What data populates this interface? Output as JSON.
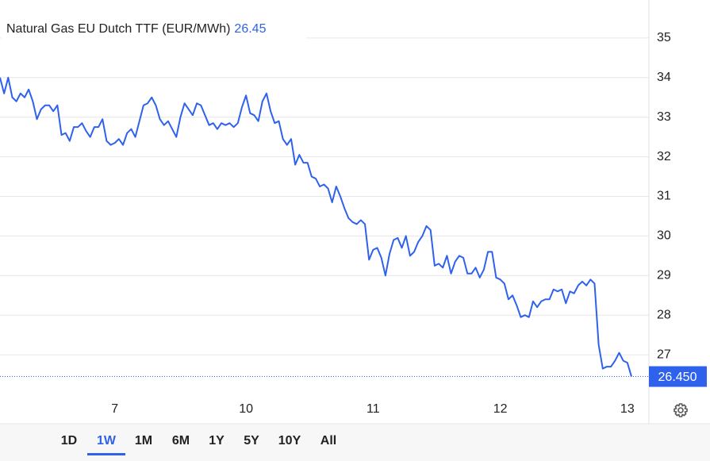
{
  "chart_data": {
    "type": "line",
    "title": "Natural Gas EU Dutch TTF (EUR/MWh)",
    "header_value": {
      "value": 26.45,
      "label": "26.45"
    },
    "price_badge": {
      "value": 26.45,
      "label": "26.450"
    },
    "color": "#2f62ec",
    "grid": true,
    "ylim": [
      25.94,
      35.96
    ],
    "yticks": [
      27,
      28,
      29,
      30,
      31,
      32,
      33,
      34,
      35
    ],
    "categories": [
      null,
      null,
      null,
      null,
      null,
      null,
      null,
      null,
      null,
      null,
      null,
      null,
      null,
      null,
      null,
      null,
      null,
      null,
      null,
      null,
      null,
      null,
      null,
      null,
      null,
      null,
      null,
      null,
      "7",
      null,
      null,
      null,
      null,
      null,
      null,
      null,
      null,
      null,
      null,
      null,
      null,
      null,
      null,
      null,
      null,
      null,
      null,
      null,
      null,
      null,
      null,
      null,
      null,
      null,
      null,
      null,
      null,
      null,
      null,
      null,
      "10",
      null,
      null,
      null,
      null,
      null,
      null,
      null,
      null,
      null,
      null,
      null,
      null,
      null,
      null,
      null,
      null,
      null,
      null,
      null,
      null,
      null,
      null,
      null,
      null,
      null,
      null,
      null,
      null,
      null,
      null,
      "11",
      null,
      null,
      null,
      null,
      null,
      null,
      null,
      null,
      null,
      null,
      null,
      null,
      null,
      null,
      null,
      null,
      null,
      null,
      null,
      null,
      null,
      null,
      null,
      null,
      null,
      null,
      null,
      null,
      null,
      null,
      "12",
      null,
      null,
      null,
      null,
      null,
      null,
      null,
      null,
      null,
      null,
      null,
      null,
      null,
      null,
      null,
      null,
      null,
      null,
      null,
      null,
      null,
      null,
      null,
      null,
      null,
      null,
      null,
      null,
      null,
      null,
      "13",
      null
    ],
    "values": [
      34.0,
      33.6,
      34.0,
      33.5,
      33.4,
      33.6,
      33.5,
      33.7,
      33.4,
      32.95,
      33.2,
      33.3,
      33.3,
      33.15,
      33.3,
      32.55,
      32.6,
      32.4,
      32.75,
      32.75,
      32.85,
      32.65,
      32.5,
      32.75,
      32.75,
      32.95,
      32.4,
      32.3,
      32.35,
      32.45,
      32.3,
      32.6,
      32.7,
      32.5,
      32.9,
      33.3,
      33.35,
      33.5,
      33.3,
      32.95,
      32.8,
      32.9,
      32.7,
      32.5,
      33.0,
      33.35,
      33.2,
      33.05,
      33.35,
      33.3,
      33.05,
      32.8,
      32.85,
      32.7,
      32.85,
      32.8,
      32.85,
      32.75,
      32.85,
      33.25,
      33.55,
      33.1,
      33.05,
      32.9,
      33.4,
      33.6,
      33.15,
      32.85,
      32.9,
      32.45,
      32.3,
      32.45,
      31.8,
      32.05,
      31.85,
      31.85,
      31.5,
      31.45,
      31.25,
      31.3,
      31.2,
      30.85,
      31.25,
      31.0,
      30.7,
      30.45,
      30.35,
      30.3,
      30.4,
      30.3,
      29.4,
      29.65,
      29.7,
      29.45,
      29.0,
      29.55,
      29.9,
      29.95,
      29.7,
      30.0,
      29.5,
      29.6,
      29.85,
      30.0,
      30.25,
      30.15,
      29.25,
      29.3,
      29.2,
      29.5,
      29.05,
      29.35,
      29.5,
      29.45,
      29.05,
      29.05,
      29.2,
      28.95,
      29.15,
      29.6,
      29.6,
      28.95,
      28.9,
      28.8,
      28.4,
      28.5,
      28.25,
      27.95,
      28.0,
      27.95,
      28.35,
      28.2,
      28.35,
      28.4,
      28.4,
      28.65,
      28.6,
      28.65,
      28.3,
      28.6,
      28.55,
      28.75,
      28.85,
      28.75,
      28.9,
      28.8,
      27.25,
      26.65,
      26.7,
      26.7,
      26.85,
      27.05,
      26.85,
      26.8,
      26.45
    ],
    "ranges": [
      "1D",
      "1W",
      "1M",
      "6M",
      "1Y",
      "5Y",
      "10Y",
      "All"
    ],
    "selected_range": "1W"
  }
}
